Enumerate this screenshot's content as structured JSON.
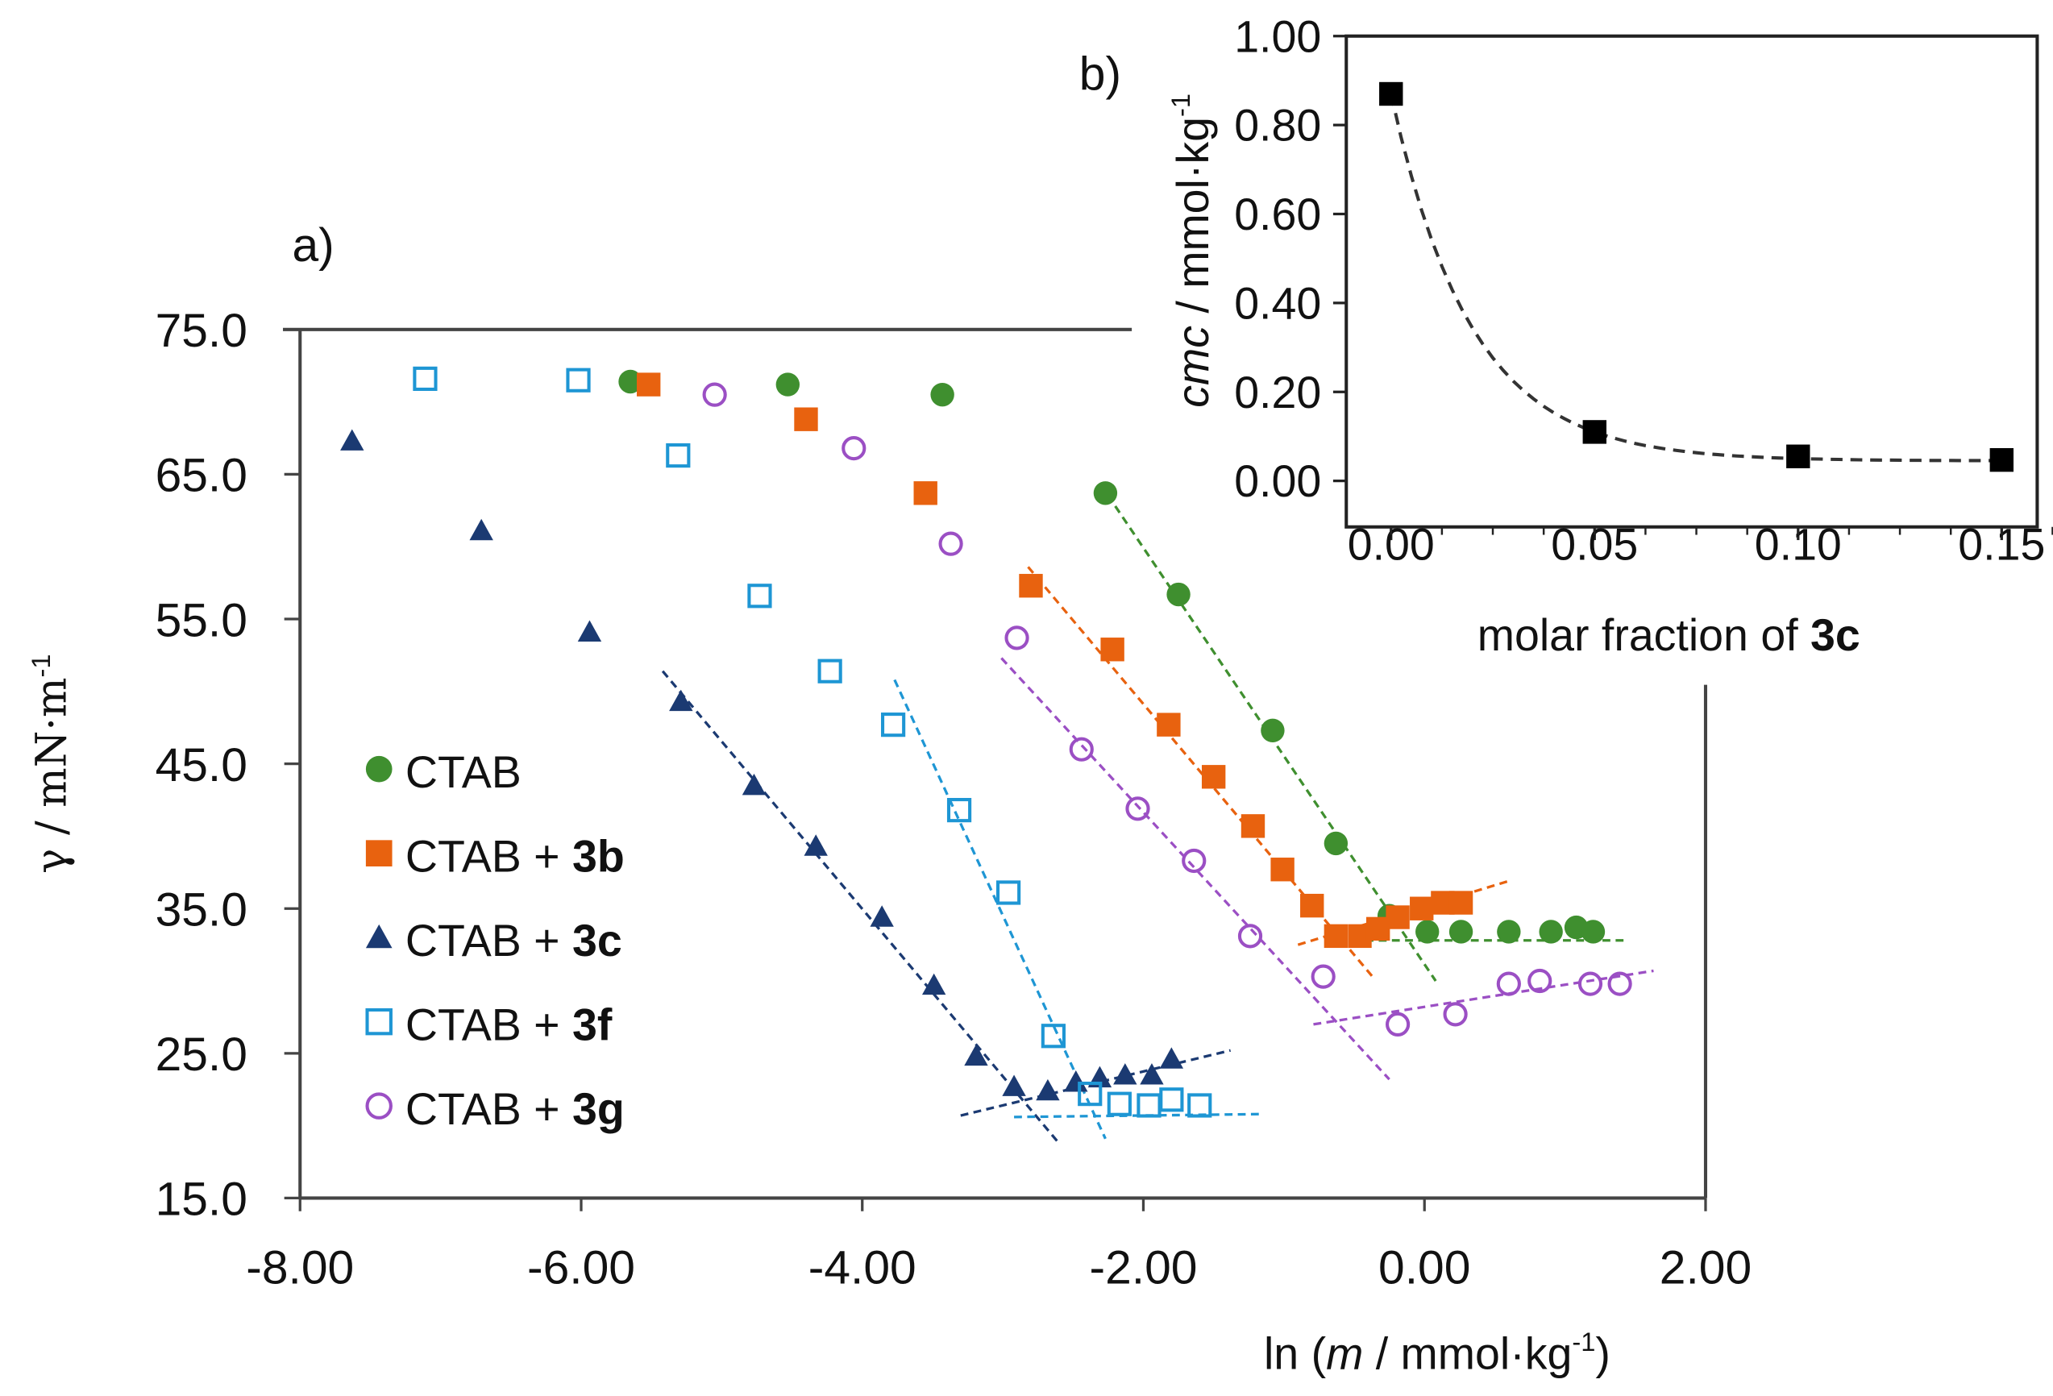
{
  "chart_data": [
    {
      "type": "scatter",
      "panel_label": "a)",
      "xlabel_prefix": "ln (",
      "xlabel_italic": "m",
      "xlabel_suffix": " / mmol·kg",
      "xlabel_sup": "-1",
      "xlabel_close": ")",
      "ylabel": "γ / mN·m",
      "ylabel_sup": "-1",
      "xlim": [
        -8,
        2
      ],
      "ylim": [
        15,
        75
      ],
      "xticks": [
        "-8.00",
        "-6.00",
        "-4.00",
        "-2.00",
        "0.00",
        "2.00"
      ],
      "yticks": [
        "15.0",
        "25.0",
        "35.0",
        "45.0",
        "55.0",
        "65.0",
        "75.0"
      ],
      "legend_placement": "lower-left",
      "series": [
        {
          "name": "CTAB",
          "name_bold": "",
          "marker": "filled-circle",
          "color": "#3f8f2f",
          "x": [
            -5.65,
            -4.53,
            -3.43,
            -2.27,
            -1.75,
            -1.08,
            -0.63,
            -0.25,
            0.02,
            0.26,
            0.6,
            0.9,
            1.08,
            1.2
          ],
          "y": [
            71.4,
            71.2,
            70.5,
            63.7,
            56.7,
            47.3,
            39.5,
            34.5,
            33.4,
            33.4,
            33.4,
            33.4,
            33.7,
            33.4
          ],
          "fits": [
            [
              -2.2,
              62.8,
              0.08,
              30.0
            ],
            [
              -0.7,
              32.8,
              1.45,
              32.8
            ]
          ]
        },
        {
          "name": "CTAB + ",
          "name_bold": "3b",
          "marker": "filled-square",
          "color": "#e8620f",
          "x": [
            -5.52,
            -4.4,
            -3.55,
            -2.8,
            -2.22,
            -1.82,
            -1.5,
            -1.22,
            -1.01,
            -0.8,
            -0.63,
            -0.46,
            -0.33,
            -0.19,
            -0.02,
            0.13,
            0.26
          ],
          "y": [
            71.2,
            68.8,
            63.7,
            57.3,
            52.9,
            47.7,
            44.1,
            40.7,
            37.7,
            35.2,
            33.1,
            33.1,
            33.6,
            34.4,
            35.0,
            35.4,
            35.4
          ],
          "fits": [
            [
              -2.82,
              58.6,
              -0.37,
              30.3
            ],
            [
              -0.9,
              32.5,
              0.6,
              36.9
            ]
          ]
        },
        {
          "name": "CTAB + ",
          "name_bold": "3c",
          "marker": "filled-triangle",
          "color": "#1b3a72",
          "x": [
            -7.63,
            -6.71,
            -5.94,
            -5.29,
            -4.77,
            -4.33,
            -3.86,
            -3.49,
            -3.19,
            -2.92,
            -2.68,
            -2.48,
            -2.31,
            -2.13,
            -1.94,
            -1.8
          ],
          "y": [
            67.3,
            61.1,
            54.1,
            49.3,
            43.5,
            39.3,
            34.4,
            29.7,
            24.8,
            22.7,
            22.4,
            23.0,
            23.3,
            23.5,
            23.5,
            24.6
          ],
          "fits": [
            [
              -5.42,
              51.4,
              -2.61,
              18.9
            ],
            [
              -3.3,
              20.7,
              -1.38,
              25.2
            ]
          ]
        },
        {
          "name": "CTAB + ",
          "name_bold": "3f",
          "marker": "open-square",
          "color": "#1e96d4",
          "x": [
            -7.11,
            -6.02,
            -5.31,
            -4.73,
            -4.23,
            -3.78,
            -3.31,
            -2.96,
            -2.64,
            -2.38,
            -2.17,
            -1.96,
            -1.8,
            -1.6
          ],
          "y": [
            71.6,
            71.5,
            66.3,
            56.6,
            51.4,
            47.7,
            41.8,
            36.1,
            26.2,
            22.2,
            21.5,
            21.4,
            21.8,
            21.4
          ],
          "fits": [
            [
              -3.77,
              50.8,
              -2.27,
              19.1
            ],
            [
              -2.92,
              20.6,
              -1.16,
              20.8
            ]
          ]
        },
        {
          "name": "CTAB + ",
          "name_bold": "3g",
          "marker": "open-circle",
          "color": "#9b4fc4",
          "x": [
            -5.05,
            -4.06,
            -3.37,
            -2.9,
            -2.44,
            -2.04,
            -1.64,
            -1.24,
            -0.72,
            -0.19,
            0.22,
            0.6,
            0.82,
            1.18,
            1.39
          ],
          "y": [
            70.5,
            66.8,
            60.2,
            53.7,
            46.0,
            41.9,
            38.3,
            33.1,
            30.3,
            27.0,
            27.7,
            29.8,
            30.0,
            29.8,
            29.8
          ],
          "fits": [
            [
              -3.01,
              52.3,
              -0.25,
              23.2
            ],
            [
              -0.79,
              27.0,
              1.63,
              30.7
            ]
          ]
        }
      ]
    },
    {
      "type": "scatter",
      "panel_label": "b)",
      "xlabel": "molar fraction of ",
      "xlabel_bold": "3c",
      "ylabel_italic": "cmc",
      "ylabel": " / mmol·kg",
      "ylabel_sup": "-1",
      "xlim": [
        -0.01,
        0.155
      ],
      "ylim": [
        -0.05,
        1.0
      ],
      "xticks": [
        "0.00",
        "0.05",
        "0.10",
        "0.15"
      ],
      "yticks": [
        "0.00",
        "0.20",
        "0.40",
        "0.60",
        "0.80",
        "1.00"
      ],
      "series": [
        {
          "name": "cmc",
          "marker": "filled-square",
          "color": "#000000",
          "x": [
            0.0,
            0.05,
            0.1,
            0.15
          ],
          "y": [
            0.87,
            0.11,
            0.055,
            0.047
          ],
          "fit": "exponential-decay"
        }
      ]
    }
  ]
}
